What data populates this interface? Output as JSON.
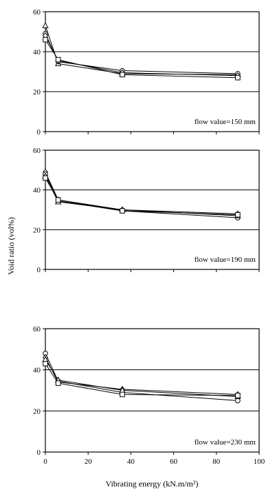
{
  "figure": {
    "ylabel": "Void ratio (vol%)",
    "xlabel": "Vibrating energy (kN.m/m²)"
  },
  "chart_data": [
    {
      "type": "line",
      "annotation": "flow value=150 mm",
      "x": [
        0,
        6,
        36,
        90
      ],
      "xlim": [
        0,
        100
      ],
      "ylim": [
        0,
        60
      ],
      "xticks": [
        0,
        20,
        40,
        60,
        80,
        100
      ],
      "yticks": [
        0,
        20,
        40,
        60
      ],
      "grid_y": [
        20,
        40
      ],
      "show_xticklabels": false,
      "series": [
        {
          "marker": "triangle",
          "values": [
            53,
            34,
            29,
            28.5
          ]
        },
        {
          "marker": "circle",
          "values": [
            49,
            35,
            30.5,
            29
          ]
        },
        {
          "marker": "diamond",
          "values": [
            48,
            35.5,
            29.5,
            28
          ]
        },
        {
          "marker": "square",
          "values": [
            46,
            36,
            28.5,
            27
          ]
        }
      ]
    },
    {
      "type": "line",
      "annotation": "flow value=190 mm",
      "x": [
        0,
        6,
        36,
        90
      ],
      "xlim": [
        0,
        100
      ],
      "ylim": [
        0,
        60
      ],
      "xticks": [
        0,
        20,
        40,
        60,
        80,
        100
      ],
      "yticks": [
        0,
        20,
        40,
        60
      ],
      "grid_y": [
        20,
        40
      ],
      "show_xticklabels": false,
      "series": [
        {
          "marker": "diamond",
          "values": [
            49,
            35,
            30,
            28
          ]
        },
        {
          "marker": "circle",
          "values": [
            48,
            34.5,
            29.5,
            26
          ]
        },
        {
          "marker": "triangle",
          "values": [
            47,
            34,
            30,
            27
          ]
        },
        {
          "marker": "square",
          "values": [
            46,
            35,
            29.5,
            27.5
          ]
        }
      ]
    },
    {
      "type": "line",
      "annotation": "flow value=230 mm",
      "x": [
        0,
        6,
        36,
        90
      ],
      "xlim": [
        0,
        100
      ],
      "ylim": [
        0,
        60
      ],
      "xticks": [
        0,
        20,
        40,
        60,
        80,
        100
      ],
      "yticks": [
        0,
        20,
        40,
        60
      ],
      "grid_y": [
        20,
        40
      ],
      "show_xticklabels": true,
      "series": [
        {
          "marker": "circle",
          "values": [
            48,
            34.5,
            29,
            25
          ]
        },
        {
          "marker": "diamond",
          "values": [
            46,
            34,
            30.5,
            28
          ]
        },
        {
          "marker": "triangle",
          "values": [
            45,
            35,
            30,
            27
          ]
        },
        {
          "marker": "square",
          "values": [
            43,
            33.5,
            28,
            27.5
          ]
        }
      ]
    }
  ]
}
